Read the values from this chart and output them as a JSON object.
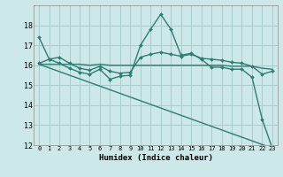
{
  "xlabel": "Humidex (Indice chaleur)",
  "background_color": "#cce8e8",
  "grid_color": "#aacccc",
  "line_color": "#2e7d72",
  "xlim": [
    -0.5,
    23.5
  ],
  "ylim": [
    12,
    19
  ],
  "ytick_values": [
    12,
    13,
    14,
    15,
    16,
    17,
    18
  ],
  "xtick_positions": [
    0,
    1,
    2,
    3,
    4,
    5,
    6,
    7,
    8,
    9,
    10,
    11,
    12,
    13,
    14,
    15,
    16,
    17,
    18,
    19,
    20,
    21,
    22,
    23
  ],
  "xtick_labels": [
    "0",
    "1",
    "2",
    "3",
    "4",
    "5",
    "6",
    "7",
    "8",
    "9",
    "10",
    "11",
    "12",
    "13",
    "14",
    "15",
    "16",
    "17",
    "18",
    "19",
    "20",
    "21",
    "22",
    "23"
  ],
  "series": [
    {
      "x": [
        0,
        1,
        2,
        3,
        4,
        5,
        6,
        7,
        8,
        9,
        10,
        11,
        12,
        13,
        14,
        15,
        16,
        17,
        18,
        19,
        20,
        21,
        22,
        23
      ],
      "y": [
        17.4,
        16.3,
        16.1,
        15.85,
        15.65,
        15.55,
        15.8,
        15.3,
        15.45,
        15.5,
        17.0,
        17.8,
        18.55,
        17.8,
        16.5,
        16.6,
        16.3,
        15.9,
        15.9,
        15.8,
        15.8,
        15.4,
        13.3,
        11.85
      ],
      "marker": "D",
      "markersize": 2.0,
      "linewidth": 1.0,
      "with_marker": true
    },
    {
      "x": [
        0,
        1,
        2,
        3,
        4,
        5,
        6,
        7,
        8,
        9,
        10,
        11,
        12,
        13,
        14,
        15,
        16,
        17,
        18,
        19,
        20,
        21,
        22,
        23
      ],
      "y": [
        16.1,
        16.3,
        16.4,
        16.1,
        15.85,
        15.75,
        15.95,
        15.7,
        15.6,
        15.65,
        16.4,
        16.55,
        16.65,
        16.55,
        16.45,
        16.55,
        16.35,
        16.3,
        16.25,
        16.15,
        16.1,
        15.95,
        15.55,
        15.7
      ],
      "marker": "D",
      "markersize": 2.0,
      "linewidth": 1.0,
      "with_marker": true
    },
    {
      "x": [
        0,
        1,
        2,
        3,
        4,
        5,
        6,
        7,
        8,
        9,
        10,
        11,
        12,
        13,
        14,
        15,
        16,
        17,
        18,
        19,
        20,
        21,
        22,
        23
      ],
      "y": [
        16.05,
        16.05,
        16.05,
        16.05,
        16.05,
        16.0,
        16.05,
        16.0,
        16.0,
        16.0,
        16.0,
        16.0,
        16.0,
        16.0,
        16.0,
        16.0,
        16.0,
        16.0,
        16.0,
        15.95,
        15.95,
        15.95,
        15.85,
        15.8
      ],
      "marker": null,
      "linewidth": 1.0,
      "with_marker": false
    },
    {
      "x": [
        0,
        23
      ],
      "y": [
        16.05,
        11.85
      ],
      "marker": null,
      "linewidth": 1.0,
      "with_marker": false
    }
  ]
}
